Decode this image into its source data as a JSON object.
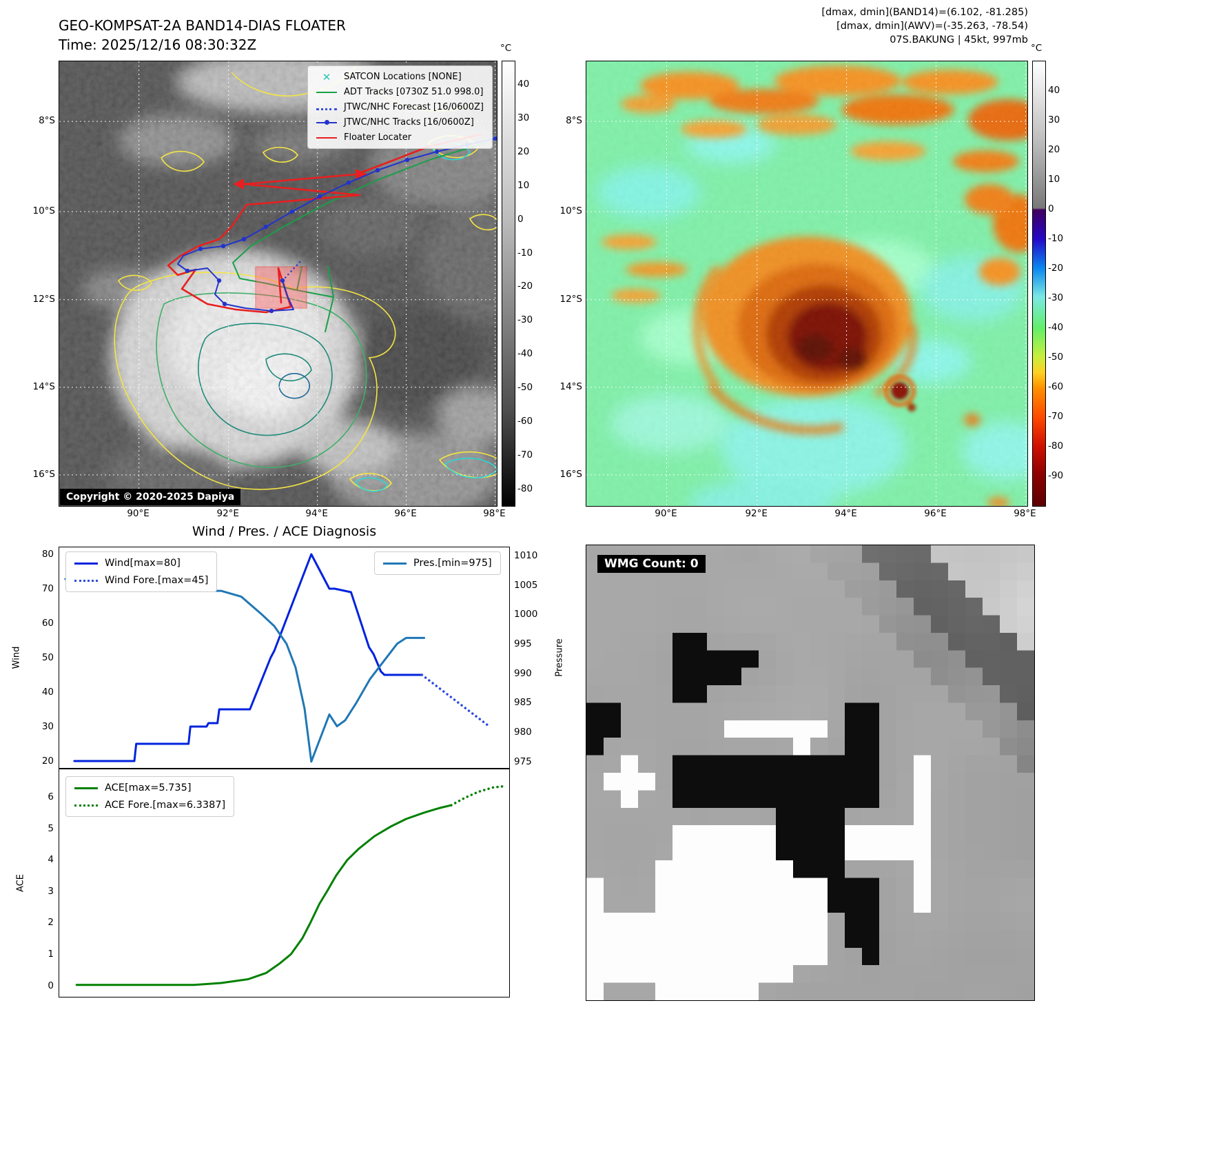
{
  "band14_panel": {
    "title": "GEO-KOMPSAT-2A BAND14-DIAS FLOATER",
    "time_line": "Time: 2025/12/16 08:30:32Z",
    "copyright": "Copyright © 2020-2025 Dapiya",
    "legend": [
      {
        "label": "SATCON Locations [NONE]",
        "marker": "x",
        "color": "#26c6b8"
      },
      {
        "label": "ADT Tracks [0730Z 51.0 998.0]",
        "marker": "line",
        "color": "#18a048"
      },
      {
        "label": "JTWC/NHC Forecast [16/0600Z]",
        "marker": "dotted",
        "color": "#3d4fe0"
      },
      {
        "label": "JTWC/NHC Tracks [16/0600Z]",
        "marker": "line-dot",
        "color": "#2233cc"
      },
      {
        "label": "Floater Locater",
        "marker": "line",
        "color": "#e81f1f"
      }
    ],
    "lat_ticks": [
      "8°S",
      "10°S",
      "12°S",
      "14°S",
      "16°S"
    ],
    "lon_ticks": [
      "90°E",
      "92°E",
      "94°E",
      "96°E",
      "98°E"
    ],
    "colorbar": {
      "unit": "°C",
      "ticks": [
        40,
        30,
        20,
        10,
        0,
        -10,
        -20,
        -30,
        -40,
        -50,
        -60,
        -70,
        -80
      ],
      "vmax": 47,
      "vmin": -85
    }
  },
  "awv_panel": {
    "header_lines": [
      "[dmax, dmin](BAND14)=(6.102, -81.285)",
      "[dmax, dmin](AWV)=(-35.263, -78.54)",
      "07S.BAKUNG | 45kt, 997mb"
    ],
    "lat_ticks": [
      "8°S",
      "10°S",
      "12°S",
      "14°S",
      "16°S"
    ],
    "lon_ticks": [
      "90°E",
      "92°E",
      "94°E",
      "96°E",
      "98°E"
    ],
    "colorbar": {
      "unit": "°C",
      "ticks": [
        40,
        30,
        20,
        10,
        0,
        -10,
        -20,
        -30,
        -40,
        -50,
        -60,
        -70,
        -80,
        -90
      ],
      "vmax": 50,
      "vmin": -100
    }
  },
  "diagnosis_panel": {
    "title": "Wind / Pres. / ACE Diagnosis",
    "wind_axis_label": "Wind",
    "pressure_axis_label": "Pressure",
    "ace_axis_label": "ACE",
    "wind_legend": [
      {
        "label": "Wind[max=80]",
        "style": "solid",
        "color": "#0022dd"
      },
      {
        "label": "Wind Fore.[max=45]",
        "style": "dotted",
        "color": "#2d49e0"
      }
    ],
    "pres_legend": [
      {
        "label": "Pres.[min=975]",
        "style": "solid",
        "color": "#1f77b4"
      }
    ],
    "ace_legend": [
      {
        "label": "ACE[max=5.735]",
        "style": "solid",
        "color": "#008000"
      },
      {
        "label": "ACE Fore.[max=6.3387]",
        "style": "dotted",
        "color": "#008000"
      }
    ]
  },
  "wmg_panel": {
    "label": "WMG Count: 0"
  },
  "chart_data": [
    {
      "type": "line",
      "title": "Wind / Pres. / ACE Diagnosis",
      "x_axis": "relative time (no x tick labels shown)",
      "ylabel_left": "Wind",
      "ylabel_right": "Pressure",
      "yticks_left": [
        20,
        30,
        40,
        50,
        60,
        70,
        80
      ],
      "yticks_right": [
        975,
        980,
        985,
        990,
        995,
        1000,
        1005,
        1010
      ],
      "ylim_left": [
        17.8,
        82.2
      ],
      "ylim_right": [
        973.8,
        1011.5
      ],
      "legend_position": "upper left / upper right",
      "series": [
        {
          "name": "Wind[max=80]",
          "axis": "left",
          "style": "solid",
          "color": "#0022dd",
          "width": 3,
          "points": [
            [
              0.035,
              20
            ],
            [
              0.168,
              20
            ],
            [
              0.172,
              25
            ],
            [
              0.288,
              25
            ],
            [
              0.292,
              30
            ],
            [
              0.328,
              30
            ],
            [
              0.332,
              31
            ],
            [
              0.352,
              31
            ],
            [
              0.356,
              35
            ],
            [
              0.424,
              35
            ],
            [
              0.47,
              50
            ],
            [
              0.478,
              52
            ],
            [
              0.56,
              80
            ],
            [
              0.6,
              70
            ],
            [
              0.612,
              70
            ],
            [
              0.648,
              69
            ],
            [
              0.688,
              53
            ],
            [
              0.698,
              51
            ],
            [
              0.714,
              46
            ],
            [
              0.722,
              45
            ],
            [
              0.805,
              45
            ]
          ]
        },
        {
          "name": "Wind Fore.[max=45]",
          "axis": "left",
          "style": "dotted",
          "color": "#2d49e0",
          "width": 3.5,
          "points": [
            [
              0.805,
              45
            ],
            [
              0.955,
              30
            ]
          ]
        },
        {
          "name": "Pres.[min=975]",
          "axis": "right",
          "style": "solid",
          "color": "#1f77b4",
          "width": 3,
          "points": [
            [
              0.015,
              1006
            ],
            [
              0.14,
              1006
            ],
            [
              0.148,
              1005
            ],
            [
              0.27,
              1005
            ],
            [
              0.3,
              1004
            ],
            [
              0.36,
              1004
            ],
            [
              0.405,
              1003
            ],
            [
              0.45,
              1000
            ],
            [
              0.478,
              998
            ],
            [
              0.505,
              995
            ],
            [
              0.525,
              991
            ],
            [
              0.545,
              984
            ],
            [
              0.56,
              975
            ],
            [
              0.585,
              980
            ],
            [
              0.6,
              983
            ],
            [
              0.617,
              981
            ],
            [
              0.635,
              982
            ],
            [
              0.66,
              985
            ],
            [
              0.69,
              989
            ],
            [
              0.72,
              992
            ],
            [
              0.75,
              995
            ],
            [
              0.77,
              996
            ],
            [
              0.81,
              996
            ]
          ]
        }
      ]
    },
    {
      "type": "line",
      "ylabel": "ACE",
      "yticks": [
        0,
        1,
        2,
        3,
        4,
        5,
        6
      ],
      "ylim": [
        -0.38,
        6.9
      ],
      "series": [
        {
          "name": "ACE[max=5.735]",
          "style": "solid",
          "color": "#008000",
          "width": 3,
          "points": [
            [
              0.04,
              0.02
            ],
            [
              0.3,
              0.02
            ],
            [
              0.36,
              0.08
            ],
            [
              0.42,
              0.2
            ],
            [
              0.46,
              0.4
            ],
            [
              0.49,
              0.7
            ],
            [
              0.515,
              1.0
            ],
            [
              0.54,
              1.5
            ],
            [
              0.558,
              2.0
            ],
            [
              0.578,
              2.6
            ],
            [
              0.595,
              3.0
            ],
            [
              0.615,
              3.5
            ],
            [
              0.64,
              4.0
            ],
            [
              0.665,
              4.35
            ],
            [
              0.7,
              4.75
            ],
            [
              0.735,
              5.05
            ],
            [
              0.77,
              5.3
            ],
            [
              0.81,
              5.5
            ],
            [
              0.845,
              5.65
            ],
            [
              0.87,
              5.735
            ]
          ]
        },
        {
          "name": "ACE Fore.[max=6.3387]",
          "style": "dotted",
          "color": "#008000",
          "width": 3.5,
          "points": [
            [
              0.87,
              5.735
            ],
            [
              0.9,
              5.97
            ],
            [
              0.93,
              6.16
            ],
            [
              0.962,
              6.3
            ],
            [
              0.988,
              6.34
            ]
          ]
        }
      ]
    }
  ]
}
